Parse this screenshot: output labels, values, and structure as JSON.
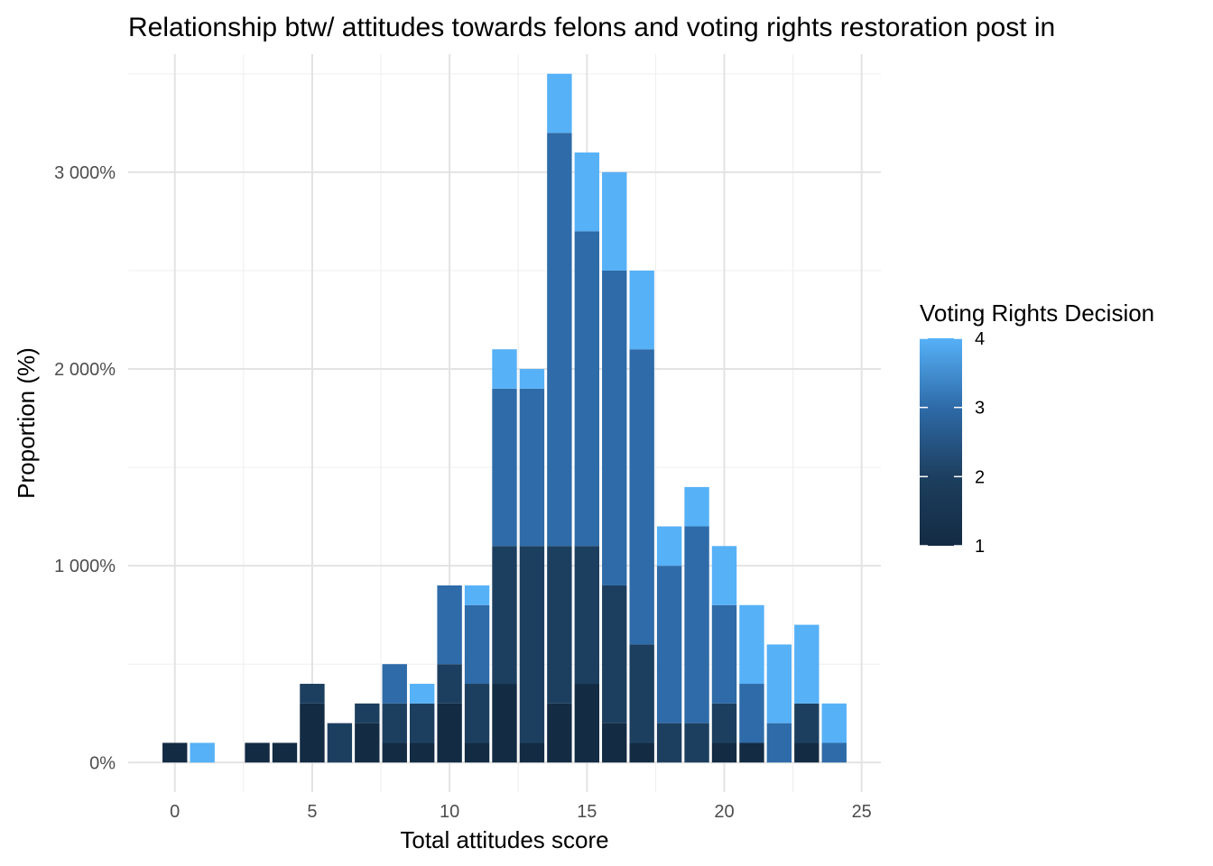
{
  "chart_data": {
    "type": "bar",
    "stacked": true,
    "title": "Relationship btw/ attitudes towards felons and voting rights restoration post in",
    "xlabel": "Total attitudes score",
    "ylabel": "Proportion (%)",
    "xlim": [
      -1.7,
      25.7
    ],
    "ylim": [
      -0.15,
      3.6
    ],
    "x_ticks": [
      0,
      5,
      10,
      15,
      20,
      25
    ],
    "x_tick_labels": [
      "0",
      "5",
      "10",
      "15",
      "20",
      "25"
    ],
    "y_ticks": [
      0,
      1,
      2,
      3
    ],
    "y_tick_labels": [
      "0%",
      "1 000%",
      "2 000%",
      "3 000%"
    ],
    "grid": true,
    "legend": {
      "title": "Voting Rights Decision",
      "position": "right",
      "type": "continuous-colorbar",
      "range": [
        1,
        4
      ],
      "breaks": [
        1,
        2,
        3,
        4
      ],
      "break_labels": [
        "1",
        "2",
        "3",
        "4"
      ],
      "colors": {
        "1": "#132B43",
        "2": "#1D3F5F",
        "3": "#2E6BA8",
        "4": "#56B1F7"
      }
    },
    "series": [
      {
        "name": "1",
        "color": "#132B43",
        "x": [
          0,
          3,
          4,
          5,
          7,
          8,
          9,
          10,
          11,
          12,
          13,
          14,
          15,
          16,
          17,
          20,
          21,
          23
        ],
        "values": [
          0.1,
          0.1,
          0.1,
          0.3,
          0.2,
          0.1,
          0.1,
          0.3,
          0.1,
          0.4,
          0.1,
          0.3,
          0.4,
          0.2,
          0.1,
          0.1,
          0.1,
          0.1
        ]
      },
      {
        "name": "2",
        "color": "#1D3F5F",
        "x": [
          5,
          6,
          7,
          8,
          9,
          10,
          11,
          12,
          13,
          14,
          15,
          16,
          17,
          18,
          19,
          20,
          23
        ],
        "values": [
          0.1,
          0.2,
          0.1,
          0.2,
          0.2,
          0.2,
          0.3,
          0.7,
          1.0,
          0.8,
          0.7,
          0.7,
          0.5,
          0.2,
          0.2,
          0.2,
          0.2
        ]
      },
      {
        "name": "3",
        "color": "#2E6BA8",
        "x": [
          10,
          11,
          12,
          13,
          14,
          15,
          16,
          17,
          18,
          19,
          20,
          21,
          22,
          24
        ],
        "values": [
          0.4,
          0.4,
          0.8,
          0.8,
          2.1,
          1.6,
          1.6,
          1.5,
          0.8,
          1.0,
          0.5,
          0.3,
          0.2,
          0.1
        ]
      },
      {
        "name": "4",
        "color": "#56B1F7",
        "x": [
          1,
          9,
          11,
          12,
          13,
          14,
          15,
          16,
          17,
          18,
          19,
          20,
          21,
          22,
          24
        ],
        "values": [
          0.1,
          0.1,
          0.1,
          0.2,
          0.1,
          0.3,
          0.4,
          0.5,
          0.4,
          0.2,
          0.2,
          0.3,
          0.4,
          0.4,
          0.2
        ]
      }
    ],
    "extra_segments": [
      {
        "x": 8,
        "bottom": 0.3,
        "value": 0.2,
        "color": "#2E6BA8"
      },
      {
        "x": 23,
        "bottom": 0.3,
        "value": 0.4,
        "color": "#56B1F7"
      }
    ]
  }
}
